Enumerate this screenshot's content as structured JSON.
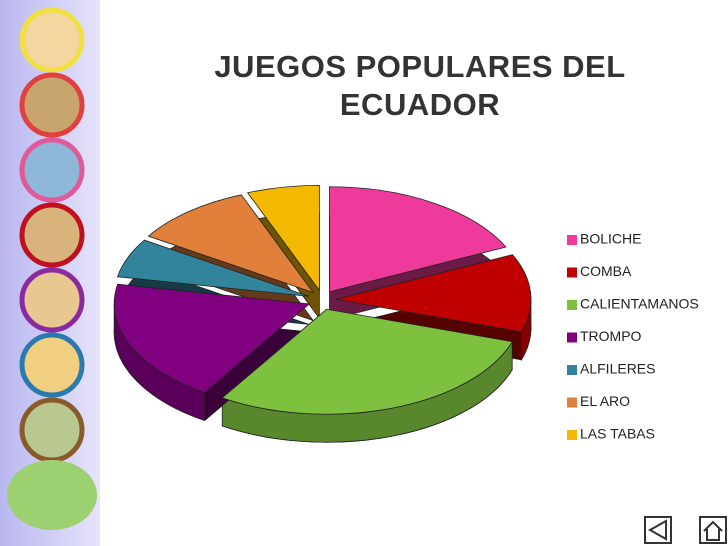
{
  "chart_data": {
    "type": "pie3d",
    "title": "JUEGOS POPULARES DEL ECUADOR",
    "categories": [
      "BOLICHE",
      "COMBA",
      "CALIENTAMANOS",
      "TROMPO",
      "ALFILERES",
      "EL ARO",
      "LAS TABAS"
    ],
    "values": [
      18,
      12,
      29,
      19,
      6,
      10,
      6
    ],
    "colors": [
      "#ee3a9a",
      "#c00000",
      "#7ec13f",
      "#800080",
      "#31849b",
      "#e0803a",
      "#f5b800"
    ],
    "legend": "right"
  }
}
